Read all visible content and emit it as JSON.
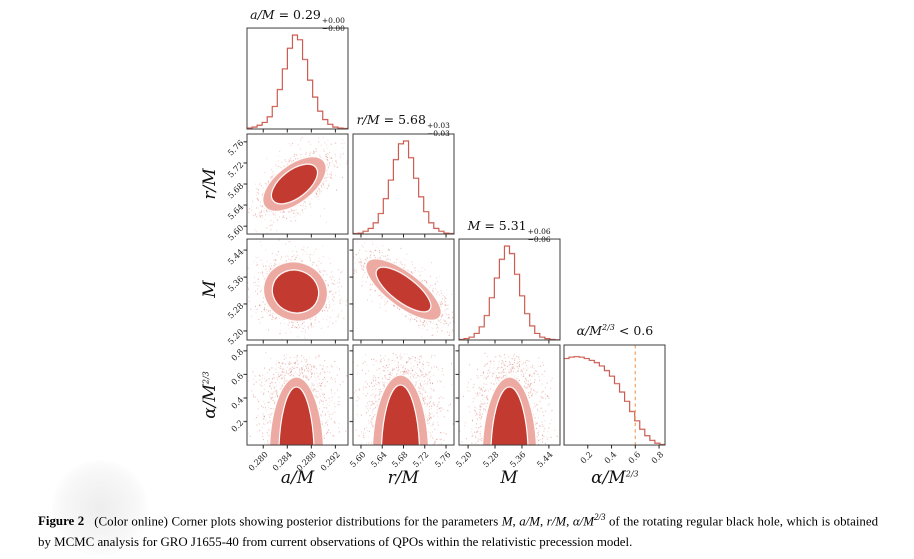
{
  "caption": {
    "label": "Figure 2",
    "pre": "(Color online) Corner plots showing posterior distributions for the parameters ",
    "sep": ", ",
    "math_M": "M",
    "math_aM": "a/M",
    "math_rM": "r/M",
    "math_alpha_base": "α/M",
    "math_alpha_exp": "2/3",
    "post": " of the rotating regular black hole, which is obtained by MCMC analysis for GRO J1655-40 from current observations of QPOs within the relativistic precession model."
  },
  "chart_data": {
    "type": "corner_plot",
    "description": "MCMC posterior corner plot with 4 parameters: diagonal 1D marginal histograms and lower-triangle 2D contour/scatter panels",
    "colors": {
      "scatter": "#c0392b",
      "fill_dark": "#c23a30",
      "fill_light": "#ecaaa2",
      "contour_line": "#ffffff",
      "hist_line": "#cc5c52",
      "upper_limit_line": "#f5ab6e",
      "frame": "#3c3c3c",
      "text": "#111111"
    },
    "parameters": [
      {
        "name": "a/M",
        "exp": null,
        "range": [
          0.2773,
          0.2941
        ],
        "tick_values": [
          0.28,
          0.284,
          0.288,
          0.292
        ],
        "tick_labels": [
          "0.280",
          "0.284",
          "0.288",
          "0.292"
        ],
        "title": {
          "var": "a/M",
          "rel": "=",
          "val": "0.29",
          "plus": "+0.00",
          "minus": "−0.00"
        },
        "hist": [
          0.01,
          0.02,
          0.04,
          0.07,
          0.13,
          0.24,
          0.42,
          0.64,
          0.86,
          1.0,
          0.95,
          0.74,
          0.52,
          0.34,
          0.19,
          0.1,
          0.05,
          0.02,
          0.01,
          0.005
        ]
      },
      {
        "name": "r/M",
        "exp": null,
        "range": [
          5.585,
          5.775
        ],
        "tick_values": [
          5.6,
          5.64,
          5.68,
          5.72,
          5.76
        ],
        "tick_labels": [
          "5.60",
          "5.64",
          "5.68",
          "5.72",
          "5.76"
        ],
        "title": {
          "var": "r/M",
          "rel": "=",
          "val": "5.68",
          "plus": "+0.03",
          "minus": "−0.03"
        },
        "hist": [
          0.005,
          0.01,
          0.03,
          0.06,
          0.12,
          0.22,
          0.38,
          0.58,
          0.8,
          0.97,
          1.0,
          0.82,
          0.6,
          0.4,
          0.24,
          0.12,
          0.06,
          0.03,
          0.01,
          0.005
        ]
      },
      {
        "name": "M",
        "exp": null,
        "range": [
          5.173,
          5.473
        ],
        "tick_values": [
          5.2,
          5.28,
          5.36,
          5.44
        ],
        "tick_labels": [
          "5.20",
          "5.28",
          "5.36",
          "5.44"
        ],
        "title": {
          "var": "M",
          "rel": "=",
          "val": "5.31",
          "plus": "+0.06",
          "minus": "−0.06"
        },
        "hist": [
          0.005,
          0.015,
          0.03,
          0.07,
          0.14,
          0.26,
          0.45,
          0.66,
          0.86,
          1.0,
          0.92,
          0.7,
          0.47,
          0.28,
          0.15,
          0.07,
          0.03,
          0.015,
          0.005,
          0.002
        ]
      },
      {
        "name": "α/M",
        "exp": "2/3",
        "range": [
          0,
          0.85
        ],
        "tick_values": [
          0.2,
          0.4,
          0.6,
          0.8
        ],
        "tick_labels": [
          "0.2",
          "0.4",
          "0.6",
          "0.8"
        ],
        "title": {
          "var": "α/M",
          "exp": "2/3",
          "rel": "<",
          "val": "0.6"
        },
        "hist": [
          0.93,
          0.945,
          0.95,
          0.945,
          0.93,
          0.91,
          0.885,
          0.85,
          0.8,
          0.74,
          0.66,
          0.57,
          0.47,
          0.36,
          0.26,
          0.17,
          0.1,
          0.05,
          0.02,
          0.005
        ],
        "upper_limit": 0.6
      }
    ],
    "contours": [
      {
        "row": 1,
        "col": 0,
        "type": "ellipse",
        "cx": 0.47,
        "cy": 0.5,
        "angle": -38,
        "sx": 0.185,
        "sy": 0.095,
        "n": 1600
      },
      {
        "row": 2,
        "col": 0,
        "type": "ellipse",
        "cx": 0.48,
        "cy": 0.52,
        "angle": 20,
        "sx": 0.16,
        "sy": 0.145,
        "n": 1600
      },
      {
        "row": 2,
        "col": 1,
        "type": "ellipse",
        "cx": 0.5,
        "cy": 0.5,
        "angle": 37,
        "sx": 0.225,
        "sy": 0.085,
        "n": 1700
      },
      {
        "row": 3,
        "col": 0,
        "type": "ridge",
        "cx": 0.49,
        "sx": 0.155,
        "cy": 1.12,
        "outer": [
          0.27,
          0.8
        ],
        "inner": [
          0.175,
          0.7
        ],
        "n": 1500
      },
      {
        "row": 3,
        "col": 1,
        "type": "ridge",
        "cx": 0.47,
        "sx": 0.165,
        "cy": 1.12,
        "outer": [
          0.28,
          0.82
        ],
        "inner": [
          0.19,
          0.72
        ],
        "n": 1500
      },
      {
        "row": 3,
        "col": 2,
        "type": "ridge",
        "cx": 0.5,
        "sx": 0.16,
        "cy": 1.12,
        "outer": [
          0.27,
          0.8
        ],
        "inner": [
          0.185,
          0.7
        ],
        "n": 1500
      }
    ],
    "layout": {
      "grid": 4,
      "legend": "none",
      "grid_lines": false
    }
  }
}
